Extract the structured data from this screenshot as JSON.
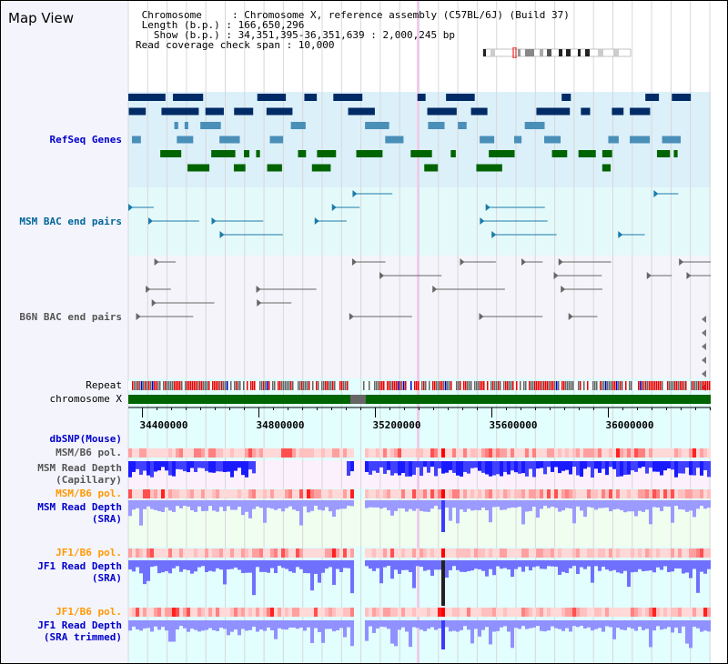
{
  "title": "Map View",
  "header": {
    "line1": " Chromosome     : Chromosome X, reference assembly (C57BL/6J) (Build 37)",
    "line2": " Length (b.p.) : 166,650,296",
    "line3": "   Show (b.p.) : 34,351,395-36,351,639 : 2,000,245 bp",
    "line4": "Read coverage check span : 10,000"
  },
  "labels": {
    "refseq": "RefSeq Genes",
    "msm_bac": "MSM BAC end pairs",
    "b6n_bac": "B6N BAC end pairs",
    "repeat": "Repeat",
    "chromosome": "chromosome X",
    "dbsnp": "dbSNP(Mouse)",
    "msm_pol_cap": "MSM/B6 pol.",
    "msm_depth_cap": "MSM Read Depth\n(Capillary)",
    "msm_pol_sra": "MSM/B6 pol.",
    "msm_depth_sra": "MSM Read Depth\n(SRA)",
    "jf1_pol_sra": "JF1/B6 pol.",
    "jf1_depth_sra": "JF1 Read Depth\n(SRA)",
    "jf1_pol_trim": "JF1/B6 pol.",
    "jf1_depth_trim": "JF1 Read Depth\n(SRA trimmed)"
  },
  "scale": {
    "start": 34351395,
    "end": 36351639,
    "ticks": [
      "34400000",
      "34800000",
      "35200000",
      "35600000",
      "36000000"
    ]
  },
  "colors": {
    "link": "#0000cc",
    "gray": "#555555",
    "orange": "#ff9900",
    "chrom": "#006400",
    "refseq_dark": "#002b66",
    "refseq_mid": "#4a8fb8",
    "refseq_green": "#006400"
  }
}
